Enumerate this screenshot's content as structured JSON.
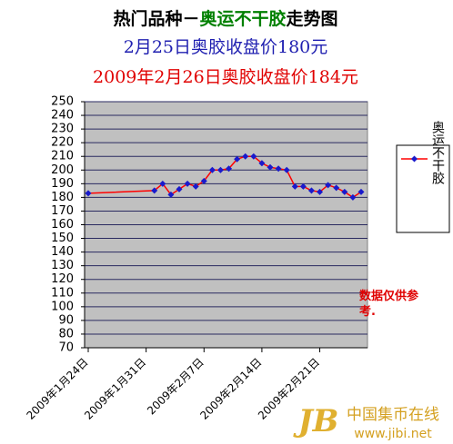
{
  "chart_data": {
    "type": "line",
    "title": [
      "热门品种－",
      "奥运不干胶",
      "走势图"
    ],
    "title_colors": [
      "#000000",
      "#008000",
      "#000000"
    ],
    "subtitles": [
      {
        "text": "2月25日奥胶收盘价180元",
        "color": "#1f1fb0"
      },
      {
        "text": "2009年2月26日奥胶收盘价184元",
        "color": "#e00000"
      }
    ],
    "x": [
      "2009-01-24",
      "2009-02-01",
      "2009-02-02",
      "2009-02-03",
      "2009-02-04",
      "2009-02-05",
      "2009-02-06",
      "2009-02-07",
      "2009-02-08",
      "2009-02-09",
      "2009-02-10",
      "2009-02-11",
      "2009-02-12",
      "2009-02-13",
      "2009-02-14",
      "2009-02-15",
      "2009-02-16",
      "2009-02-17",
      "2009-02-18",
      "2009-02-19",
      "2009-02-20",
      "2009-02-21",
      "2009-02-22",
      "2009-02-23",
      "2009-02-24",
      "2009-02-25",
      "2009-02-26"
    ],
    "series": [
      {
        "name": "奥运不干胶",
        "color": "#ff0000",
        "marker_color": "#1a1acc",
        "values": [
          183,
          185,
          190,
          182,
          186,
          190,
          188,
          192,
          200,
          200,
          201,
          208,
          210,
          210,
          205,
          202,
          201,
          200,
          188,
          188,
          185,
          184,
          189,
          187,
          184,
          180,
          184
        ]
      }
    ],
    "xlim": [
      "2009-01-24",
      "2009-02-26"
    ],
    "xticks": [
      {
        "value": "2009-01-24",
        "label": "2009年1月24日"
      },
      {
        "value": "2009-01-31",
        "label": "2009年1月31日"
      },
      {
        "value": "2009-02-07",
        "label": "2009年2月7日"
      },
      {
        "value": "2009-02-14",
        "label": "2009年2月14日"
      },
      {
        "value": "2009-02-21",
        "label": "2009年2月21日"
      }
    ],
    "ylim": [
      70,
      250
    ],
    "yticks": [
      70,
      80,
      90,
      100,
      110,
      120,
      130,
      140,
      150,
      160,
      170,
      180,
      190,
      200,
      210,
      220,
      230,
      240,
      250
    ],
    "grid": true,
    "legend": "right",
    "annotation": "数据仅供参考.",
    "watermark": [
      "中国集币在线",
      "www.jibi.net"
    ]
  }
}
